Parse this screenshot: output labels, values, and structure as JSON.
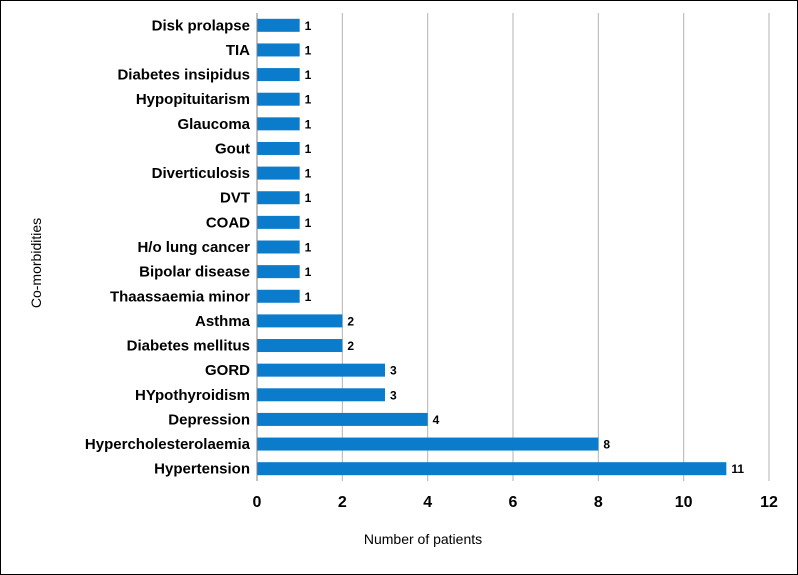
{
  "chart_data": {
    "type": "bar",
    "orientation": "horizontal",
    "categories": [
      "Disk prolapse",
      "TIA",
      "Diabetes insipidus",
      "Hypopituitarism",
      "Glaucoma",
      "Gout",
      "Diverticulosis",
      "DVT",
      "COAD",
      "H/o lung cancer",
      "Bipolar disease",
      "Thaassaemia minor",
      "Asthma",
      "Diabetes mellitus",
      "GORD",
      "HYpothyroidism",
      "Depression",
      "Hypercholesterolaemia",
      "Hypertension"
    ],
    "values": [
      1,
      1,
      1,
      1,
      1,
      1,
      1,
      1,
      1,
      1,
      1,
      1,
      2,
      2,
      3,
      3,
      4,
      8,
      11
    ],
    "xlabel": "Number of patients",
    "ylabel": "Co-morbidities",
    "xlim": [
      0,
      12
    ],
    "xticks": [
      "0",
      "2",
      "4",
      "6",
      "8",
      "10",
      "12"
    ],
    "grid": "vertical",
    "bar_color": "#0a7ccb",
    "data_labels": true
  }
}
